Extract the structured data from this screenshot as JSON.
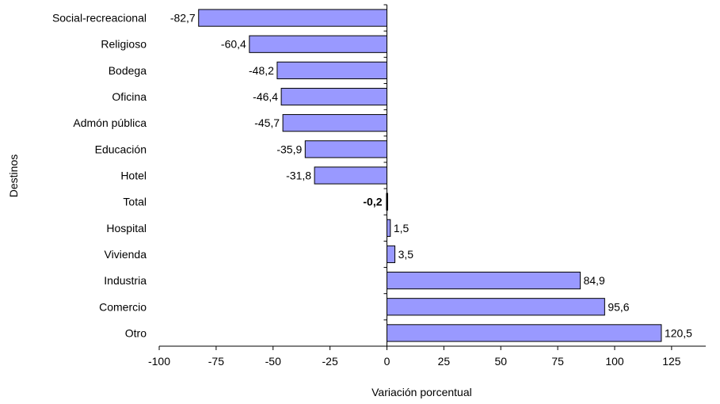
{
  "chart_data": {
    "type": "bar",
    "orientation": "horizontal",
    "title": "",
    "xlabel": "Variación porcentual",
    "ylabel": "Destinos",
    "xlim": [
      -100,
      140
    ],
    "xticks": [
      -100,
      -75,
      -50,
      -25,
      0,
      25,
      50,
      75,
      100,
      125
    ],
    "xtick_labels": [
      "-100",
      "-75",
      "-50",
      "-25",
      "0",
      "25",
      "50",
      "75",
      "100",
      "125"
    ],
    "grid": false,
    "bar_color": "#9999ff",
    "categories": [
      "Social-recreacional",
      "Religioso",
      "Bodega",
      "Oficina",
      "Admón pública",
      "Educación",
      "Hotel",
      "Total",
      "Hospital",
      "Vivienda",
      "Industria",
      "Comercio",
      "Otro"
    ],
    "values": [
      -82.7,
      -60.4,
      -48.2,
      -46.4,
      -45.7,
      -35.9,
      -31.8,
      -0.2,
      1.5,
      3.5,
      84.9,
      95.6,
      120.5
    ],
    "value_labels": [
      "-82,7",
      "-60,4",
      "-48,2",
      "-46,4",
      "-45,7",
      "-35,9",
      "-31,8",
      "-0,2",
      "1,5",
      "3,5",
      "84,9",
      "95,6",
      "120,5"
    ],
    "highlight_category": "Total"
  }
}
